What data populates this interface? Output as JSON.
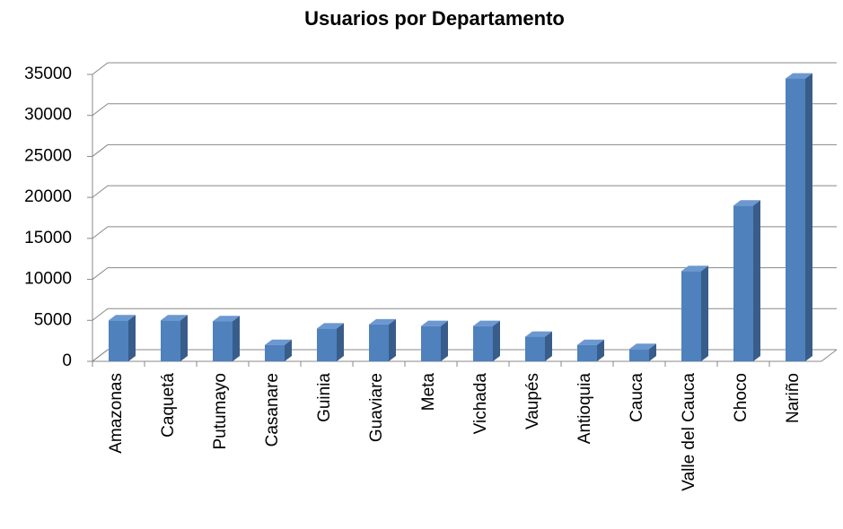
{
  "chart_data": {
    "type": "bar3d",
    "title": "Usuarios por Departamento",
    "categories": [
      "Amazonas",
      "Caquetá",
      "Putumayo",
      "Casanare",
      "Guinia",
      "Guaviare",
      "Meta",
      "Vichada",
      "Vaupés",
      "Antioquia",
      "Cauca",
      "Valle del Cauca",
      "Choco",
      "Nariño"
    ],
    "values": [
      5000,
      5000,
      4900,
      2000,
      4000,
      4500,
      4300,
      4300,
      3000,
      2000,
      1500,
      11000,
      19000,
      34500
    ],
    "color": "#4f81bd",
    "ylim": [
      0,
      35000
    ],
    "yticks": [
      0,
      5000,
      10000,
      15000,
      20000,
      25000,
      30000,
      35000
    ],
    "grid": true
  }
}
